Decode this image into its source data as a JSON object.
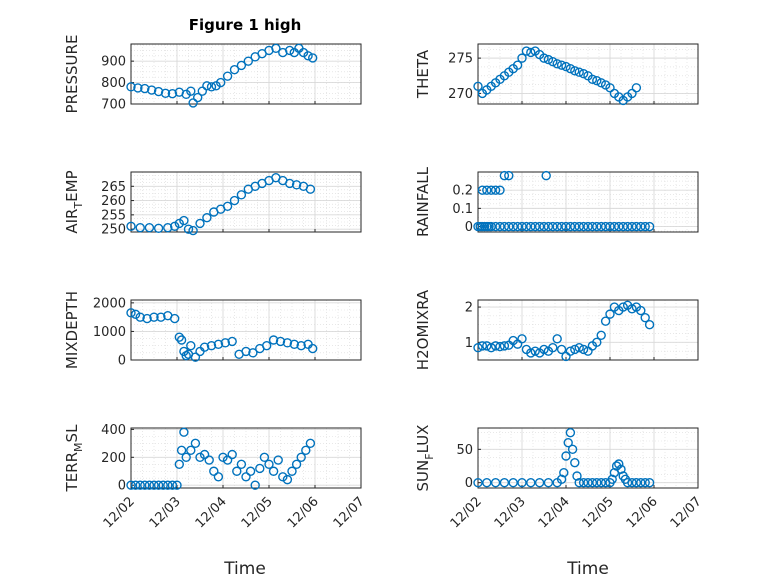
{
  "figure": {
    "title": "Figure 1 high",
    "xlabel": "Time"
  },
  "colors": {
    "marker": "#0072BD",
    "grid": "#d9d9d9",
    "axis": "#262626"
  },
  "chart_data": [
    {
      "type": "scatter",
      "ylabel": "PRESSURE",
      "ylabel_sub": "",
      "xlim": [
        0,
        5
      ],
      "ylim": [
        700,
        980
      ],
      "yticks": [
        700,
        800,
        900
      ],
      "x": [
        0.0,
        0.15,
        0.3,
        0.45,
        0.6,
        0.75,
        0.9,
        1.05,
        1.2,
        1.3,
        1.35,
        1.45,
        1.55,
        1.65,
        1.75,
        1.85,
        1.95,
        2.1,
        2.25,
        2.4,
        2.55,
        2.7,
        2.85,
        3.0,
        3.15,
        3.3,
        3.45,
        3.55,
        3.65,
        3.75,
        3.85,
        3.95
      ],
      "y": [
        780,
        775,
        772,
        765,
        758,
        750,
        748,
        755,
        745,
        760,
        705,
        730,
        760,
        785,
        780,
        785,
        800,
        830,
        860,
        880,
        900,
        920,
        935,
        950,
        960,
        940,
        950,
        940,
        960,
        940,
        925,
        915
      ]
    },
    {
      "type": "scatter",
      "ylabel": "THETA",
      "ylabel_sub": "",
      "xlim": [
        0,
        5
      ],
      "ylim": [
        268.5,
        277
      ],
      "yticks": [
        270,
        275
      ],
      "x": [
        0.0,
        0.1,
        0.2,
        0.3,
        0.4,
        0.5,
        0.6,
        0.7,
        0.8,
        0.9,
        1.0,
        1.1,
        1.2,
        1.3,
        1.4,
        1.5,
        1.6,
        1.7,
        1.8,
        1.9,
        2.0,
        2.1,
        2.2,
        2.3,
        2.4,
        2.5,
        2.6,
        2.7,
        2.8,
        2.9,
        3.0,
        3.1,
        3.2,
        3.3,
        3.4,
        3.5,
        3.6
      ],
      "y": [
        271,
        270,
        270.5,
        271,
        271.5,
        272,
        272.5,
        273,
        273.5,
        274,
        275,
        276,
        275.8,
        276,
        275.5,
        275,
        274.8,
        274.5,
        274.2,
        274,
        273.8,
        273.5,
        273.2,
        273,
        272.8,
        272.5,
        272,
        271.8,
        271.5,
        271.2,
        270.8,
        270,
        269.5,
        269,
        269.5,
        270,
        270.8
      ]
    },
    {
      "type": "scatter",
      "ylabel": "AIR",
      "ylabel_sub": "T",
      "ylabel_rest": "EMP",
      "xlim": [
        0,
        5
      ],
      "ylim": [
        249,
        270
      ],
      "yticks": [
        250,
        255,
        260,
        265
      ],
      "x": [
        0.0,
        0.2,
        0.4,
        0.6,
        0.8,
        0.95,
        1.05,
        1.15,
        1.25,
        1.35,
        1.5,
        1.65,
        1.8,
        1.95,
        2.1,
        2.25,
        2.4,
        2.55,
        2.7,
        2.85,
        3.0,
        3.15,
        3.3,
        3.45,
        3.6,
        3.75,
        3.9
      ],
      "y": [
        251,
        250.5,
        250.5,
        250.3,
        250.5,
        251,
        252,
        253,
        250,
        249.5,
        252,
        254,
        256,
        257,
        258,
        260,
        262,
        264,
        265,
        266,
        267,
        268,
        267,
        266,
        265.5,
        265,
        264
      ]
    },
    {
      "type": "scatter",
      "ylabel": "RAINFALL",
      "ylabel_sub": "",
      "xlim": [
        0,
        5
      ],
      "ylim": [
        -0.03,
        0.3
      ],
      "yticks": [
        0,
        0.1,
        0.2
      ],
      "x": [
        0.0,
        0.05,
        0.1,
        0.15,
        0.2,
        0.25,
        0.3,
        0.4,
        0.5,
        0.6,
        0.7,
        0.8,
        0.9,
        1.0,
        1.1,
        1.2,
        1.3,
        1.4,
        1.5,
        1.6,
        1.7,
        1.8,
        1.9,
        2.0,
        2.1,
        2.2,
        2.3,
        2.4,
        2.5,
        2.6,
        2.7,
        2.8,
        2.9,
        3.0,
        3.1,
        3.2,
        3.3,
        3.4,
        3.5,
        3.6,
        3.7,
        3.8,
        3.9,
        0.1,
        0.2,
        0.3,
        0.4,
        0.5,
        0.6,
        0.7,
        1.55
      ],
      "y": [
        0,
        0,
        0,
        0,
        0,
        0,
        0,
        0,
        0,
        0,
        0,
        0,
        0,
        0,
        0,
        0,
        0,
        0,
        0,
        0,
        0,
        0,
        0,
        0,
        0,
        0,
        0,
        0,
        0,
        0,
        0,
        0,
        0,
        0,
        0,
        0,
        0,
        0,
        0,
        0,
        0,
        0,
        0,
        0.2,
        0.2,
        0.2,
        0.2,
        0.2,
        0.28,
        0.28,
        0.28
      ]
    },
    {
      "type": "scatter",
      "ylabel": "MIXDEPTH",
      "ylabel_sub": "",
      "xlim": [
        0,
        5
      ],
      "ylim": [
        0,
        2100
      ],
      "yticks": [
        0,
        1000,
        2000
      ],
      "x": [
        0.0,
        0.1,
        0.2,
        0.35,
        0.5,
        0.65,
        0.8,
        0.95,
        1.05,
        1.1,
        1.15,
        1.2,
        1.25,
        1.3,
        1.4,
        1.5,
        1.6,
        1.75,
        1.9,
        2.05,
        2.2,
        2.35,
        2.5,
        2.65,
        2.8,
        2.95,
        3.1,
        3.25,
        3.4,
        3.55,
        3.7,
        3.85,
        3.95
      ],
      "y": [
        1650,
        1600,
        1500,
        1450,
        1500,
        1500,
        1550,
        1450,
        800,
        700,
        300,
        150,
        200,
        500,
        100,
        300,
        450,
        500,
        550,
        600,
        650,
        200,
        300,
        250,
        400,
        500,
        700,
        650,
        600,
        550,
        500,
        550,
        400
      ]
    },
    {
      "type": "scatter",
      "ylabel": "H2OMIXRA",
      "ylabel_sub": "",
      "xlim": [
        0,
        5
      ],
      "ylim": [
        0.5,
        2.2
      ],
      "yticks": [
        1,
        2
      ],
      "x": [
        0.0,
        0.1,
        0.2,
        0.3,
        0.4,
        0.5,
        0.6,
        0.7,
        0.8,
        0.9,
        1.0,
        1.1,
        1.2,
        1.3,
        1.4,
        1.5,
        1.6,
        1.7,
        1.8,
        1.9,
        2.0,
        2.1,
        2.2,
        2.3,
        2.4,
        2.5,
        2.6,
        2.7,
        2.8,
        2.9,
        3.0,
        3.1,
        3.2,
        3.3,
        3.4,
        3.5,
        3.6,
        3.7,
        3.8,
        3.9
      ],
      "y": [
        0.85,
        0.9,
        0.9,
        0.85,
        0.9,
        0.88,
        0.9,
        0.92,
        1.05,
        0.95,
        1.1,
        0.8,
        0.7,
        0.75,
        0.7,
        0.8,
        0.75,
        0.85,
        1.1,
        0.8,
        0.6,
        0.75,
        0.8,
        0.85,
        0.8,
        0.75,
        0.9,
        1.0,
        1.2,
        1.6,
        1.8,
        2.0,
        1.9,
        2.0,
        2.05,
        1.95,
        2.0,
        1.9,
        1.7,
        1.5
      ]
    },
    {
      "type": "scatter",
      "ylabel": "TERR",
      "ylabel_sub": "M",
      "ylabel_rest": "SL",
      "xlim": [
        0,
        5
      ],
      "ylim": [
        -20,
        410
      ],
      "yticks": [
        0,
        200,
        400
      ],
      "x": [
        0.0,
        0.1,
        0.2,
        0.3,
        0.4,
        0.5,
        0.6,
        0.7,
        0.8,
        0.9,
        1.0,
        1.05,
        1.1,
        1.15,
        1.2,
        1.3,
        1.4,
        1.5,
        1.6,
        1.7,
        1.8,
        1.9,
        2.0,
        2.1,
        2.2,
        2.3,
        2.4,
        2.5,
        2.6,
        2.7,
        2.8,
        2.9,
        3.0,
        3.1,
        3.2,
        3.3,
        3.4,
        3.5,
        3.6,
        3.7,
        3.8,
        3.9
      ],
      "y": [
        0,
        0,
        0,
        0,
        0,
        0,
        0,
        0,
        0,
        0,
        0,
        150,
        250,
        380,
        200,
        250,
        300,
        200,
        220,
        180,
        100,
        60,
        200,
        180,
        220,
        100,
        150,
        60,
        100,
        0,
        120,
        200,
        150,
        100,
        180,
        60,
        40,
        100,
        150,
        200,
        250,
        300
      ]
    },
    {
      "type": "scatter",
      "ylabel": "SUN",
      "ylabel_sub": "F",
      "ylabel_rest": "LUX",
      "xlim": [
        0,
        5
      ],
      "ylim": [
        -8,
        82
      ],
      "yticks": [
        0,
        50
      ],
      "x": [
        0.0,
        0.2,
        0.4,
        0.6,
        0.8,
        1.0,
        1.2,
        1.4,
        1.6,
        1.8,
        1.9,
        1.95,
        2.0,
        2.05,
        2.1,
        2.15,
        2.2,
        2.25,
        2.3,
        2.4,
        2.5,
        2.6,
        2.7,
        2.8,
        2.9,
        3.0,
        3.05,
        3.1,
        3.15,
        3.2,
        3.25,
        3.3,
        3.35,
        3.4,
        3.5,
        3.6,
        3.7,
        3.8,
        3.9
      ],
      "y": [
        0,
        0,
        0,
        0,
        0,
        0,
        0,
        0,
        0,
        0,
        5,
        15,
        40,
        60,
        75,
        50,
        30,
        10,
        0,
        0,
        0,
        0,
        0,
        0,
        0,
        0,
        5,
        15,
        25,
        28,
        20,
        10,
        5,
        0,
        0,
        0,
        0,
        0,
        0
      ]
    }
  ],
  "xticks": [
    "12/02",
    "12/03",
    "12/04",
    "12/05",
    "12/06",
    "12/07"
  ]
}
